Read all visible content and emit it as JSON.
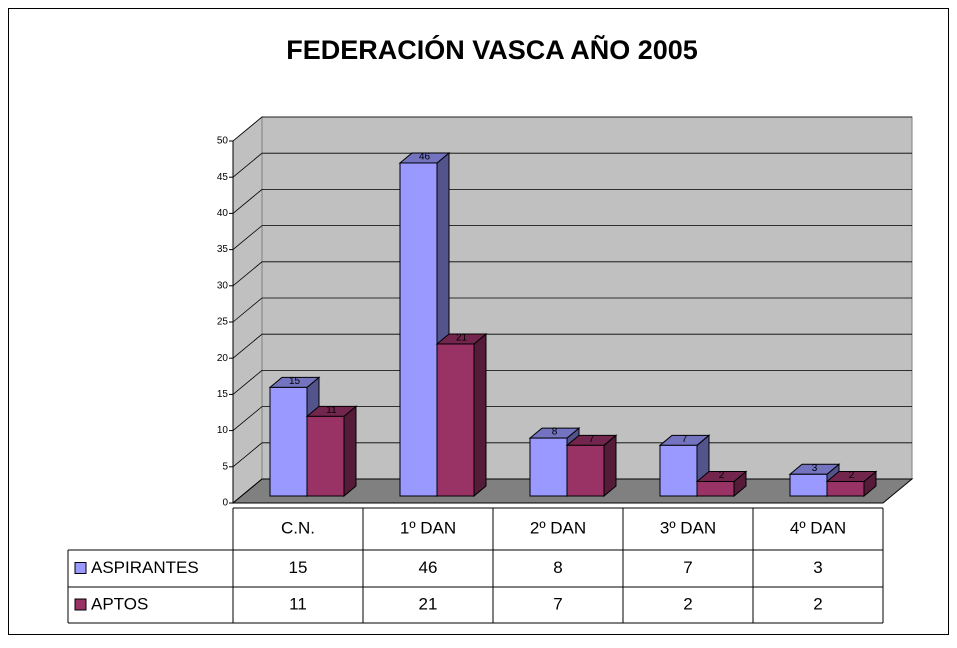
{
  "chart_data": {
    "type": "bar3d",
    "title": "FEDERACIÓN VASCA AÑO 2005",
    "categories": [
      "C.N.",
      "1º DAN",
      "2º DAN",
      "3º DAN",
      "4º DAN"
    ],
    "series": [
      {
        "name": "ASPIRANTES",
        "color": "#9999ff",
        "values": [
          15,
          46,
          8,
          7,
          3
        ]
      },
      {
        "name": "APTOS",
        "color": "#993366",
        "values": [
          11,
          21,
          7,
          2,
          2
        ]
      }
    ],
    "ylim": [
      0,
      50
    ],
    "yticks": [
      0,
      5,
      10,
      15,
      20,
      25,
      30,
      35,
      40,
      45,
      50
    ],
    "grid": true,
    "data_table": true
  }
}
